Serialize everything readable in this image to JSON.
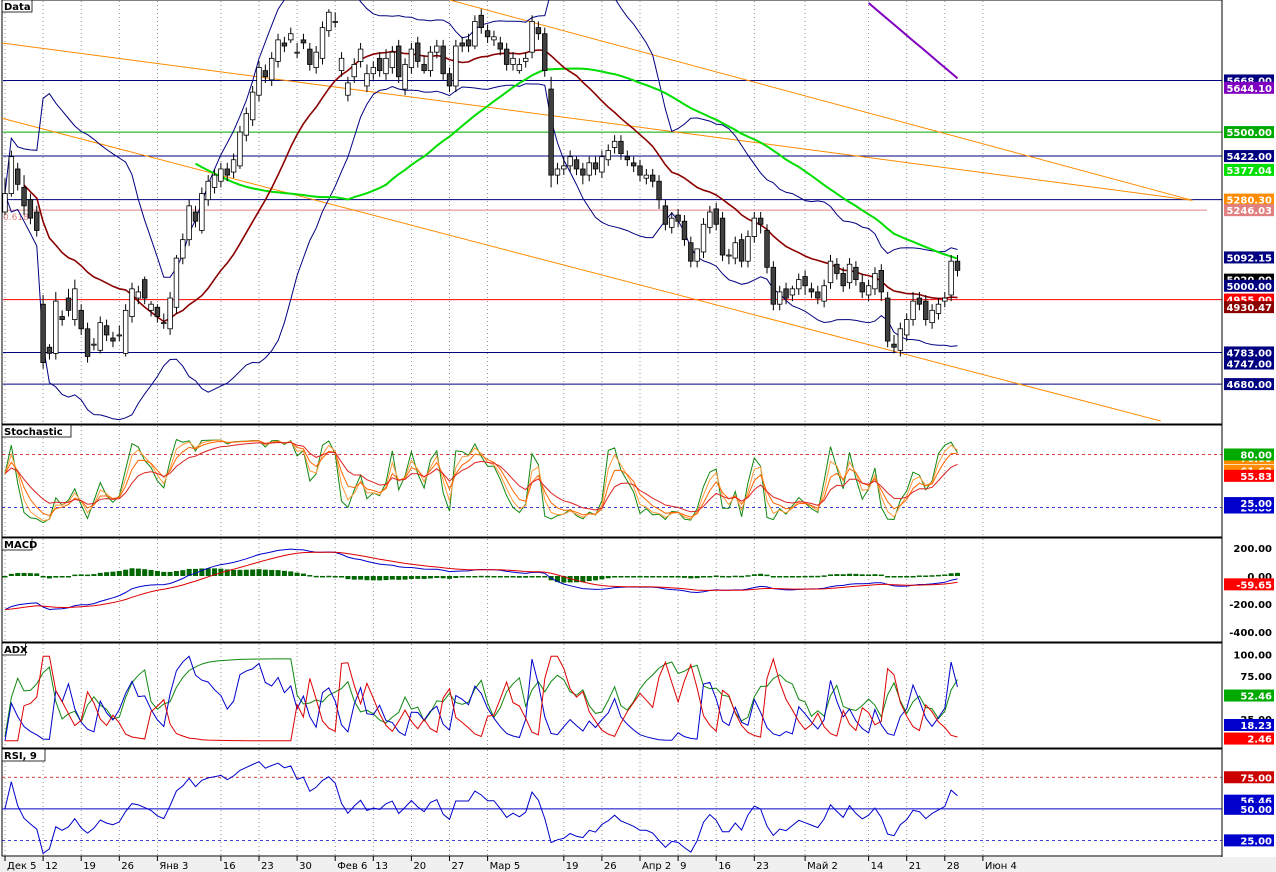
{
  "xaxis": {
    "labels": [
      "Дек 5",
      "12",
      "19",
      "26",
      "Янв 3",
      "16",
      "23",
      "30",
      "Фев 6",
      "13",
      "20",
      "27",
      "Мар 5",
      "19",
      "26",
      "Апр 2",
      "9",
      "16",
      "23",
      "Май 2",
      "14",
      "21",
      "28",
      "Июн 4"
    ],
    "label_bars": [
      0,
      6,
      12,
      18,
      24,
      34,
      40,
      46,
      52,
      58,
      64,
      70,
      76,
      88,
      94,
      100,
      106,
      112,
      118,
      126,
      136,
      142,
      148,
      154
    ]
  },
  "chart_data": [
    {
      "type": "candlestick",
      "panel": "Data",
      "title": "Data",
      "ylim": [
        4560,
        5920
      ],
      "x_unit": "trading day index",
      "close": [
        5300,
        5420,
        5330,
        5260,
        5220,
        5180,
        4750,
        4780,
        4950,
        4890,
        4920,
        4990,
        4860,
        4770,
        4810,
        4880,
        4840,
        4820,
        4840,
        4920,
        4990,
        4980,
        4960,
        4940,
        4900,
        4880,
        4960,
        5090,
        5150,
        5260,
        5210,
        5300,
        5340,
        5360,
        5380,
        5360,
        5410,
        5500,
        5560,
        5630,
        5710,
        5680,
        5740,
        5800,
        5780,
        5820,
        5760,
        5790,
        5720,
        5760,
        5840,
        5890,
        5860,
        5740,
        5660,
        5720,
        5770,
        5690,
        5710,
        5700,
        5740,
        5760,
        5680,
        5720,
        5770,
        5730,
        5700,
        5760,
        5780,
        5690,
        5650,
        5780,
        5780,
        5780,
        5860,
        5840,
        5810,
        5810,
        5770,
        5720,
        5740,
        5720,
        5740,
        5860,
        5820,
        5700,
        5360,
        5380,
        5390,
        5420,
        5380,
        5360,
        5400,
        5380,
        5420,
        5440,
        5470,
        5430,
        5410,
        5390,
        5360,
        5360,
        5340,
        5280,
        5200,
        5220,
        5210,
        5150,
        5080,
        5120,
        5200,
        5240,
        5200,
        5100,
        5100,
        5140,
        5080,
        5160,
        5220,
        5200,
        5060,
        4940,
        4980,
        4960,
        4990,
        5020,
        5000,
        4980,
        4960,
        5000,
        5080,
        5040,
        5000,
        5070,
        5020,
        4980,
        5000,
        5040,
        4980,
        4820,
        4800,
        4860,
        4890,
        4950,
        4940,
        4890,
        4920,
        4940,
        4960,
        5080,
        5050
      ],
      "open": [
        5240,
        5300,
        5380,
        5320,
        5280,
        5240,
        4940,
        4800,
        4780,
        4900,
        4960,
        4890,
        4920,
        4860,
        4810,
        4790,
        4870,
        4830,
        4840,
        4780,
        4900,
        4960,
        5020,
        4920,
        4930,
        4880,
        4860,
        4930,
        5090,
        5150,
        5240,
        5180,
        5280,
        5320,
        5340,
        5380,
        5370,
        5390,
        5490,
        5540,
        5620,
        5700,
        5670,
        5730,
        5790,
        5800,
        5760,
        5800,
        5770,
        5710,
        5740,
        5830,
        5860,
        5700,
        5620,
        5680,
        5730,
        5650,
        5690,
        5740,
        5690,
        5710,
        5780,
        5640,
        5710,
        5790,
        5720,
        5700,
        5760,
        5780,
        5690,
        5650,
        5790,
        5800,
        5780,
        5880,
        5830,
        5800,
        5790,
        5770,
        5720,
        5700,
        5730,
        5760,
        5840,
        5820,
        5640,
        5360,
        5380,
        5390,
        5410,
        5380,
        5360,
        5400,
        5370,
        5410,
        5450,
        5470,
        5420,
        5400,
        5390,
        5350,
        5360,
        5340,
        5260,
        5190,
        5230,
        5210,
        5140,
        5080,
        5110,
        5190,
        5250,
        5220,
        5100,
        5090,
        5150,
        5080,
        5160,
        5220,
        5180,
        5060,
        4940,
        4990,
        4970,
        4990,
        5030,
        4990,
        4980,
        4950,
        5010,
        5070,
        5040,
        5010,
        5060,
        5010,
        4970,
        4990,
        5050,
        4960,
        4810,
        4790,
        4840,
        4890,
        4960,
        4950,
        4880,
        4910,
        4950,
        4970,
        5080
      ],
      "high": [
        5350,
        5440,
        5400,
        5360,
        5300,
        5260,
        4970,
        4810,
        4980,
        4920,
        4990,
        5020,
        4940,
        4880,
        4830,
        4900,
        4890,
        4850,
        4870,
        4940,
        5010,
        5000,
        5030,
        4950,
        4940,
        4910,
        4980,
        5100,
        5170,
        5280,
        5260,
        5320,
        5360,
        5380,
        5400,
        5400,
        5430,
        5520,
        5580,
        5650,
        5730,
        5720,
        5760,
        5820,
        5810,
        5840,
        5790,
        5820,
        5790,
        5780,
        5860,
        5900,
        5890,
        5760,
        5680,
        5740,
        5790,
        5720,
        5730,
        5760,
        5770,
        5780,
        5800,
        5740,
        5790,
        5810,
        5750,
        5780,
        5800,
        5800,
        5710,
        5800,
        5810,
        5820,
        5880,
        5900,
        5850,
        5830,
        5810,
        5790,
        5760,
        5740,
        5760,
        5880,
        5860,
        5840,
        5680,
        5400,
        5420,
        5440,
        5420,
        5400,
        5420,
        5420,
        5440,
        5460,
        5490,
        5490,
        5440,
        5420,
        5410,
        5380,
        5380,
        5360,
        5280,
        5240,
        5250,
        5230,
        5160,
        5120,
        5220,
        5260,
        5270,
        5240,
        5120,
        5160,
        5170,
        5180,
        5240,
        5240,
        5200,
        5080,
        5000,
        5010,
        5000,
        5040,
        5050,
        5010,
        5000,
        5020,
        5100,
        5090,
        5060,
        5090,
        5080,
        5040,
        5020,
        5060,
        5070,
        4980,
        4840,
        4880,
        4910,
        4980,
        4980,
        4970,
        4940,
        4960,
        4980,
        5100,
        5100
      ],
      "low": [
        5230,
        5290,
        5310,
        5230,
        5200,
        5160,
        4730,
        4760,
        4760,
        4870,
        4900,
        4870,
        4840,
        4750,
        4790,
        4780,
        4820,
        4800,
        4820,
        4770,
        4880,
        4940,
        4940,
        4900,
        4880,
        4860,
        4840,
        4910,
        5070,
        5130,
        5190,
        5170,
        5260,
        5300,
        5320,
        5340,
        5350,
        5380,
        5470,
        5520,
        5600,
        5660,
        5650,
        5710,
        5760,
        5790,
        5740,
        5770,
        5700,
        5690,
        5720,
        5810,
        5840,
        5680,
        5600,
        5660,
        5710,
        5630,
        5670,
        5680,
        5670,
        5690,
        5660,
        5620,
        5690,
        5710,
        5690,
        5680,
        5740,
        5670,
        5630,
        5630,
        5760,
        5760,
        5770,
        5820,
        5790,
        5780,
        5750,
        5700,
        5700,
        5690,
        5710,
        5740,
        5800,
        5680,
        5320,
        5330,
        5360,
        5370,
        5360,
        5330,
        5340,
        5360,
        5350,
        5390,
        5430,
        5410,
        5390,
        5370,
        5340,
        5330,
        5320,
        5250,
        5180,
        5170,
        5190,
        5130,
        5060,
        5060,
        5090,
        5170,
        5180,
        5080,
        5070,
        5070,
        5060,
        5060,
        5140,
        5170,
        5040,
        4920,
        4920,
        4940,
        4950,
        4970,
        4970,
        4960,
        4940,
        4930,
        4990,
        5020,
        4980,
        4990,
        5000,
        4960,
        4950,
        4970,
        4950,
        4800,
        4780,
        4770,
        4820,
        4870,
        4920,
        4870,
        4860,
        4890,
        4930,
        4950,
        5030
      ],
      "series": [
        {
          "name": "red-ma",
          "color": "#8b0000"
        },
        {
          "name": "green-ma",
          "color": "#00dd00"
        },
        {
          "name": "purple-ma",
          "color": "#8000c0"
        },
        {
          "name": "bollinger",
          "color": "#000080"
        }
      ],
      "levels": [
        {
          "value": 5668.0,
          "label": "5668.00",
          "color": "#000080",
          "line": true
        },
        {
          "value": 5644.1,
          "label": "5644.10",
          "color": "#8000c0",
          "line": false
        },
        {
          "value": 5500.0,
          "label": "5500.00",
          "color": "#00aa00",
          "line": true
        },
        {
          "value": 5422.0,
          "label": "5422.00",
          "color": "#000080",
          "line": true
        },
        {
          "value": 5377.04,
          "label": "5377.04",
          "color": "#00dd00",
          "line": false
        },
        {
          "value": 5280.3,
          "label": "5280.30",
          "color": "#000080",
          "line": true,
          "label_bg": "#ff8c00"
        },
        {
          "value": 5246.03,
          "label": "5246.03",
          "color": "#e08080",
          "line": true
        },
        {
          "value": 5092.15,
          "label": "5092.15",
          "color": "#000080",
          "line": false
        },
        {
          "value": 5020.0,
          "label": "5020.00",
          "color": "#000000",
          "line": false
        },
        {
          "value": 5000.0,
          "label": "5000.00",
          "color": "#000080",
          "line": false
        },
        {
          "value": 4955.0,
          "label": "4955.00",
          "color": "#ff0000",
          "line": true
        },
        {
          "value": 4930.47,
          "label": "4930.47",
          "color": "#8b0000",
          "line": false
        },
        {
          "value": 4783.0,
          "label": "4783.00",
          "color": "#000080",
          "line": true
        },
        {
          "value": 4747.0,
          "label": "4747.00",
          "color": "#000080",
          "line": false
        },
        {
          "value": 4680.0,
          "label": "4680.00",
          "color": "#000080",
          "line": true
        }
      ],
      "annotation": "0.618"
    },
    {
      "type": "line",
      "panel": "Stochastic",
      "title": "Stochastic",
      "ylim": [
        -10,
        110
      ],
      "levels": [
        {
          "value": 76.0,
          "label": "76.00",
          "color": "#ff8c00"
        },
        {
          "value": 61.62,
          "label": "61.62",
          "color": "#ff8c00"
        },
        {
          "value": 55.83,
          "label": "55.83",
          "color": "#ff0000"
        },
        {
          "value": 20.0,
          "label": "20.00",
          "color": "#0000cc"
        },
        {
          "value": 25.0,
          "label": "25.00",
          "color": "#0000cc"
        },
        {
          "value": 80.0,
          "label": "80.00",
          "color": "#00aa00"
        }
      ]
    },
    {
      "type": "bar+line",
      "panel": "MACD",
      "title": "MACD",
      "ylim": [
        -450,
        250
      ],
      "yticks": [
        200,
        0,
        -200,
        -400
      ],
      "ytick_labels": [
        "200.00",
        "0.00",
        "-200.00",
        "-400.00"
      ],
      "levels": [
        {
          "value": -59.65,
          "label": "-59.65",
          "color": "#ff0000"
        }
      ]
    },
    {
      "type": "line",
      "panel": "ADX",
      "title": "ADX",
      "ylim": [
        -5,
        110
      ],
      "yticks": [
        100,
        75,
        25
      ],
      "ytick_labels": [
        "100.00",
        "75.00",
        "25.00"
      ],
      "levels": [
        {
          "value": 52.46,
          "label": "52.46",
          "color": "#00aa00"
        },
        {
          "value": 18.23,
          "label": "18.23",
          "color": "#0000cc"
        },
        {
          "value": 2.46,
          "label": "2.46",
          "color": "#ff0000"
        }
      ]
    },
    {
      "type": "line",
      "panel": "RSI",
      "title": "RSI, 9",
      "ylim": [
        15,
        95
      ],
      "levels": [
        {
          "value": 75.0,
          "label": "75.00",
          "color": "#cc0000"
        },
        {
          "value": 56.46,
          "label": "56.46",
          "color": "#0000cc"
        },
        {
          "value": 50.0,
          "label": "50.00",
          "color": "#0000cc"
        },
        {
          "value": 25.0,
          "label": "25.00",
          "color": "#0000cc"
        }
      ]
    }
  ]
}
